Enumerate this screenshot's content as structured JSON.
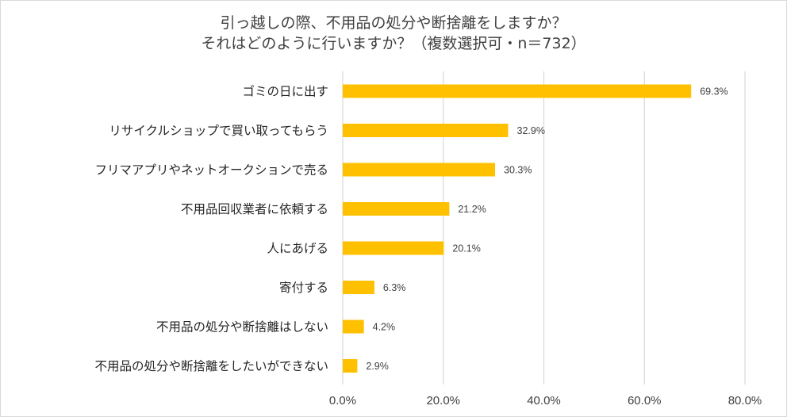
{
  "chart_data": {
    "type": "bar",
    "orientation": "horizontal",
    "title_lines": [
      "引っ越しの際、不用品の処分や断捨離をしますか？",
      "それはどのように行いますか？（複数選択可・n＝732）"
    ],
    "categories": [
      "ゴミの日に出す",
      "リサイクルショップで買い取ってもらう",
      "フリマアプリやネットオークションで売る",
      "不用品回収業者に依頼する",
      "人にあげる",
      "寄付する",
      "不用品の処分や断捨離はしない",
      "不用品の処分や断捨離をしたいができない"
    ],
    "values": [
      69.3,
      32.9,
      30.3,
      21.2,
      20.1,
      6.3,
      4.2,
      2.9
    ],
    "value_labels": [
      "69.3%",
      "32.9%",
      "30.3%",
      "21.2%",
      "20.1%",
      "6.3%",
      "4.2%",
      "2.9%"
    ],
    "xlim": [
      0,
      80
    ],
    "xticks": [
      0,
      20,
      40,
      60,
      80
    ],
    "xtick_labels": [
      "0.0%",
      "20.0%",
      "40.0%",
      "60.0%",
      "80.0%"
    ],
    "grid": "vertical",
    "bar_color": "#FFC000",
    "grid_color": "#d9d9d9"
  }
}
